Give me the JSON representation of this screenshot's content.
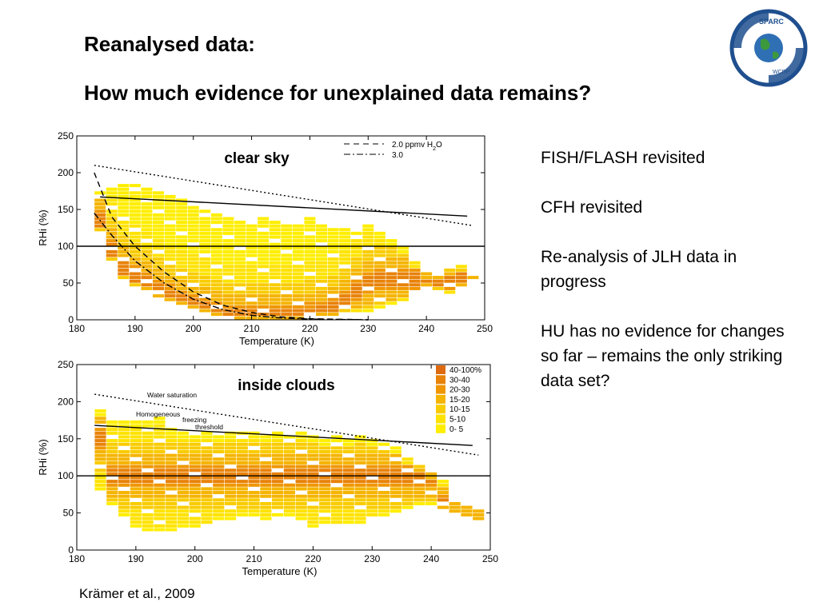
{
  "slide": {
    "title_line1": "Reanalysed data:",
    "title_line2": "How much evidence for unexplained data remains?",
    "bullets": [
      "FISH/FLASH revisited",
      "CFH revisited",
      "Re-analysis of JLH data in progress",
      "HU has no evidence for changes so far – remains the only striking data set?"
    ],
    "citation": "Krämer et al., 2009",
    "logo": {
      "icon": "sparc-wcrp-logo",
      "text_top": "SPARC",
      "text_bottom": "WCRP",
      "ring_color": "#1f4f8e"
    }
  },
  "chart_data": [
    {
      "type": "heatmap",
      "panel_label": "clear sky",
      "xlabel": "Temperature (K)",
      "ylabel": "RHi (%)",
      "xlim": [
        180,
        250
      ],
      "ylim": [
        0,
        250
      ],
      "xticks": [
        "180",
        "190",
        "200",
        "210",
        "220",
        "230",
        "240",
        "250"
      ],
      "yticks": [
        "0",
        "50",
        "100",
        "150",
        "200",
        "250"
      ],
      "legend": {
        "placement": "top-right",
        "entries": [
          {
            "label": "2.0 ppmv H",
            "sub": "2",
            "tail": "O",
            "style": "dashed"
          },
          {
            "label": "3.0",
            "sub": "",
            "tail": "",
            "style": "dashdot"
          }
        ]
      },
      "lines": [
        {
          "style": "solid",
          "x": [
            184,
            247
          ],
          "y": [
            167,
            141
          ]
        },
        {
          "style": "dotted",
          "x": [
            183,
            248
          ],
          "y": [
            210,
            128
          ]
        },
        {
          "style": "solid",
          "x": [
            180,
            250
          ],
          "y": [
            100,
            100
          ]
        },
        {
          "style": "dashed",
          "x": [
            183,
            186,
            190,
            195,
            200,
            205,
            210,
            215,
            220,
            230
          ],
          "y": [
            200,
            140,
            100,
            65,
            38,
            20,
            10,
            4,
            1.5,
            0
          ]
        },
        {
          "style": "dashdot",
          "x": [
            183,
            186,
            190,
            195,
            200,
            205,
            210,
            215,
            220,
            230
          ],
          "y": [
            145,
            115,
            80,
            50,
            28,
            14,
            6,
            2.5,
            1,
            0
          ]
        }
      ],
      "color_scale": [
        "#ffee00",
        "#ffe300",
        "#f9cc00",
        "#f5b400",
        "#f09600",
        "#e8820a",
        "#de6a10"
      ],
      "columns": [
        {
          "x": 184,
          "y0": 120,
          "y1": 175,
          "hot": 135
        },
        {
          "x": 186,
          "y0": 80,
          "y1": 180,
          "hot": 95
        },
        {
          "x": 188,
          "y0": 55,
          "y1": 185,
          "hot": 70
        },
        {
          "x": 190,
          "y0": 45,
          "y1": 185,
          "hot": 58
        },
        {
          "x": 192,
          "y0": 40,
          "y1": 180,
          "hot": 50
        },
        {
          "x": 194,
          "y0": 30,
          "y1": 175,
          "hot": 40
        },
        {
          "x": 196,
          "y0": 25,
          "y1": 170,
          "hot": 32
        },
        {
          "x": 198,
          "y0": 20,
          "y1": 165,
          "hot": 25
        },
        {
          "x": 200,
          "y0": 15,
          "y1": 160,
          "hot": 20
        },
        {
          "x": 202,
          "y0": 10,
          "y1": 150,
          "hot": 15
        },
        {
          "x": 204,
          "y0": 5,
          "y1": 145,
          "hot": 10
        },
        {
          "x": 206,
          "y0": 0,
          "y1": 140,
          "hot": 6
        },
        {
          "x": 208,
          "y0": 0,
          "y1": 135,
          "hot": 5
        },
        {
          "x": 210,
          "y0": 0,
          "y1": 130,
          "hot": 5
        },
        {
          "x": 212,
          "y0": 0,
          "y1": 140,
          "hot": 5
        },
        {
          "x": 214,
          "y0": 0,
          "y1": 135,
          "hot": 5
        },
        {
          "x": 216,
          "y0": 0,
          "y1": 130,
          "hot": 5
        },
        {
          "x": 218,
          "y0": 0,
          "y1": 135,
          "hot": 5
        },
        {
          "x": 220,
          "y0": 5,
          "y1": 140,
          "hot": 8
        },
        {
          "x": 222,
          "y0": 5,
          "y1": 130,
          "hot": 10
        },
        {
          "x": 224,
          "y0": 5,
          "y1": 125,
          "hot": 15
        },
        {
          "x": 226,
          "y0": 10,
          "y1": 130,
          "hot": 25
        },
        {
          "x": 228,
          "y0": 10,
          "y1": 120,
          "hot": 40
        },
        {
          "x": 230,
          "y0": 10,
          "y1": 130,
          "hot": 50
        },
        {
          "x": 232,
          "y0": 15,
          "y1": 120,
          "hot": 55
        },
        {
          "x": 234,
          "y0": 20,
          "y1": 110,
          "hot": 55
        },
        {
          "x": 236,
          "y0": 25,
          "y1": 100,
          "hot": 55
        },
        {
          "x": 238,
          "y0": 35,
          "y1": 80,
          "hot": 55
        },
        {
          "x": 240,
          "y0": 45,
          "y1": 65,
          "hot": 55
        },
        {
          "x": 242,
          "y0": 40,
          "y1": 65,
          "hot": 55
        },
        {
          "x": 244,
          "y0": 35,
          "y1": 70,
          "hot": 55
        },
        {
          "x": 246,
          "y0": 45,
          "y1": 75,
          "hot": 55
        },
        {
          "x": 248,
          "y0": 55,
          "y1": 60,
          "hot": 58
        }
      ]
    },
    {
      "type": "heatmap",
      "panel_label": "inside clouds",
      "xlabel": "Temperature (K)",
      "ylabel": "RHi (%)",
      "xlim": [
        180,
        250
      ],
      "ylim": [
        0,
        250
      ],
      "xticks": [
        "180",
        "190",
        "200",
        "210",
        "220",
        "230",
        "240",
        "250"
      ],
      "yticks": [
        "0",
        "50",
        "100",
        "150",
        "200",
        "250"
      ],
      "annotations": [
        "Water saturation",
        "Homogeneous",
        "freezing",
        "threshold"
      ],
      "legend": {
        "placement": "top-right",
        "entries": [
          "40-100%",
          "30-40",
          "20-30",
          "15-20",
          "10-15",
          "5-10",
          "0- 5"
        ],
        "colors": [
          "#de6a10",
          "#e8820a",
          "#f09600",
          "#f5b400",
          "#f9cc00",
          "#ffe300",
          "#ffee00"
        ]
      },
      "lines": [
        {
          "style": "solid",
          "x": [
            183,
            247
          ],
          "y": [
            168,
            141
          ]
        },
        {
          "style": "dotted",
          "x": [
            183,
            248
          ],
          "y": [
            210,
            128
          ]
        },
        {
          "style": "solid",
          "x": [
            180,
            250
          ],
          "y": [
            100,
            100
          ]
        }
      ],
      "color_scale": [
        "#ffee00",
        "#ffe300",
        "#f9cc00",
        "#f5b400",
        "#f09600",
        "#e8820a",
        "#de6a10"
      ],
      "columns": [
        {
          "x": 184,
          "y0": 80,
          "y1": 190,
          "hot": 150
        },
        {
          "x": 186,
          "y0": 60,
          "y1": 175,
          "hot": 100
        },
        {
          "x": 188,
          "y0": 45,
          "y1": 175,
          "hot": 100
        },
        {
          "x": 190,
          "y0": 30,
          "y1": 175,
          "hot": 100
        },
        {
          "x": 192,
          "y0": 25,
          "y1": 175,
          "hot": 100
        },
        {
          "x": 194,
          "y0": 25,
          "y1": 180,
          "hot": 100
        },
        {
          "x": 196,
          "y0": 25,
          "y1": 165,
          "hot": 100
        },
        {
          "x": 198,
          "y0": 30,
          "y1": 160,
          "hot": 100
        },
        {
          "x": 200,
          "y0": 30,
          "y1": 160,
          "hot": 100
        },
        {
          "x": 202,
          "y0": 30,
          "y1": 160,
          "hot": 100
        },
        {
          "x": 204,
          "y0": 40,
          "y1": 155,
          "hot": 100
        },
        {
          "x": 206,
          "y0": 40,
          "y1": 160,
          "hot": 100
        },
        {
          "x": 208,
          "y0": 45,
          "y1": 160,
          "hot": 100
        },
        {
          "x": 210,
          "y0": 45,
          "y1": 160,
          "hot": 100
        },
        {
          "x": 212,
          "y0": 40,
          "y1": 155,
          "hot": 100
        },
        {
          "x": 214,
          "y0": 45,
          "y1": 160,
          "hot": 100
        },
        {
          "x": 216,
          "y0": 45,
          "y1": 155,
          "hot": 100
        },
        {
          "x": 218,
          "y0": 40,
          "y1": 160,
          "hot": 100
        },
        {
          "x": 220,
          "y0": 30,
          "y1": 155,
          "hot": 100
        },
        {
          "x": 222,
          "y0": 35,
          "y1": 150,
          "hot": 100
        },
        {
          "x": 224,
          "y0": 30,
          "y1": 155,
          "hot": 100
        },
        {
          "x": 226,
          "y0": 35,
          "y1": 150,
          "hot": 100
        },
        {
          "x": 228,
          "y0": 35,
          "y1": 155,
          "hot": 100
        },
        {
          "x": 230,
          "y0": 40,
          "y1": 150,
          "hot": 100
        },
        {
          "x": 232,
          "y0": 45,
          "y1": 145,
          "hot": 100
        },
        {
          "x": 234,
          "y0": 50,
          "y1": 140,
          "hot": 100
        },
        {
          "x": 236,
          "y0": 55,
          "y1": 125,
          "hot": 100
        },
        {
          "x": 238,
          "y0": 60,
          "y1": 115,
          "hot": 100
        },
        {
          "x": 240,
          "y0": 60,
          "y1": 105,
          "hot": 100
        },
        {
          "x": 242,
          "y0": 55,
          "y1": 95,
          "hot": 60
        },
        {
          "x": 244,
          "y0": 50,
          "y1": 65,
          "hot": 58
        },
        {
          "x": 246,
          "y0": 45,
          "y1": 60,
          "hot": 55
        },
        {
          "x": 248,
          "y0": 40,
          "y1": 55,
          "hot": 48
        }
      ]
    }
  ]
}
